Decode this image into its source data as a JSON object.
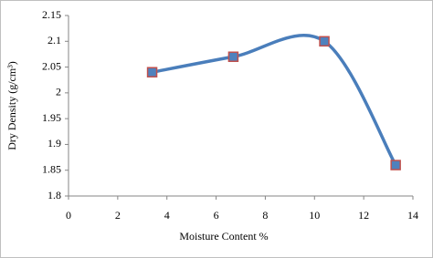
{
  "chart_data": {
    "type": "scatter",
    "smooth": true,
    "xlabel": "Moisture Content %",
    "ylabel": "Dry Density (g/cm³)",
    "series": [
      {
        "name": "Dry Density",
        "color": "#4a7ebb",
        "marker_color": "#4f81bd",
        "marker_edge_color": "#c0504d",
        "x": [
          3.4,
          6.7,
          10.4,
          13.3
        ],
        "values": [
          2.04,
          2.07,
          2.1,
          1.86
        ]
      }
    ],
    "xlim": [
      0,
      14
    ],
    "xticks": [
      0,
      2,
      4,
      6,
      8,
      10,
      12,
      14
    ],
    "ylim": [
      1.8,
      2.15
    ],
    "yticks": [
      1.8,
      1.85,
      1.9,
      1.95,
      2,
      2.05,
      2.1,
      2.15
    ],
    "grid": false,
    "legend": false
  }
}
